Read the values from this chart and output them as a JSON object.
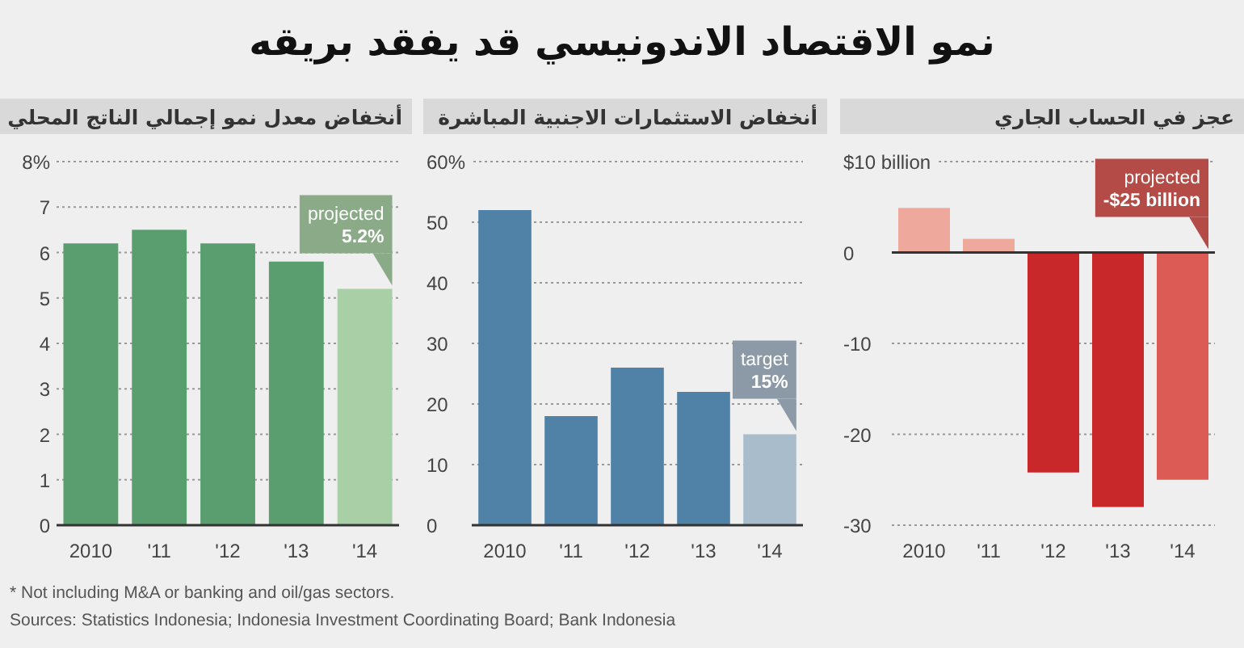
{
  "chart_data": [
    {
      "type": "bar",
      "title": "نمو الاقتصاد الاندونيسي قد يفقد بريقه",
      "subtitle": "أنخفاض معدل نمو إجمالي الناتج المحلي",
      "categories": [
        "2010",
        "'11",
        "'12",
        "'13",
        "'14"
      ],
      "values": [
        6.2,
        6.5,
        6.2,
        5.8,
        5.2
      ],
      "colors": [
        "#5a9e6f",
        "#5a9e6f",
        "#5a9e6f",
        "#5a9e6f",
        "#a8cfa6"
      ],
      "ylim": [
        0,
        8
      ],
      "yticks": [
        0,
        1,
        2,
        3,
        4,
        5,
        6,
        7,
        {
          "value": 8,
          "label": "8%"
        }
      ],
      "grid": "y",
      "annotations": [
        {
          "text": "projected **5.2%**",
          "x": "'14",
          "y": 5.2
        },
        "* Not including M&A or banking and oil/gas sectors.",
        "Sources: Statistics Indonesia; Indonesia Investment Coordinating Board; Bank Indonesia"
      ]
    },
    {
      "type": "bar",
      "subtitle": "أنخفاض الاستثمارات الاجنبية المباشرة",
      "categories": [
        "2010",
        "'11",
        "'12",
        "'13",
        "'14"
      ],
      "values": [
        52,
        18,
        26,
        22,
        15
      ],
      "colors": [
        "#4f82a6",
        "#4f82a6",
        "#4f82a6",
        "#4f82a6",
        "#a9bccb"
      ],
      "ylim": [
        0,
        60
      ],
      "yticks": [
        0,
        10,
        20,
        30,
        40,
        50,
        {
          "value": 60,
          "label": "60%"
        }
      ],
      "grid": "y",
      "annotations": [
        {
          "text": "target **15%**",
          "x": "'14",
          "y": 15
        }
      ]
    },
    {
      "type": "bar",
      "subtitle": "عجز في الحساب الجاري",
      "categories": [
        "2010",
        "'11",
        "'12",
        "'13",
        "'14"
      ],
      "values": [
        4.9,
        1.5,
        -24.2,
        -28.0,
        -25
      ],
      "colors": [
        "#eea89c",
        "#eea89c",
        "#c8282a",
        "#c8282a",
        "#dc5b55"
      ],
      "ylim": [
        -30,
        10
      ],
      "yticks": [
        -30,
        -20,
        -10,
        0,
        {
          "value": 10,
          "label": "$10 billion"
        }
      ],
      "grid": "y",
      "annotations": [
        "projected **-$25 billion**"
      ]
    }
  ]
}
